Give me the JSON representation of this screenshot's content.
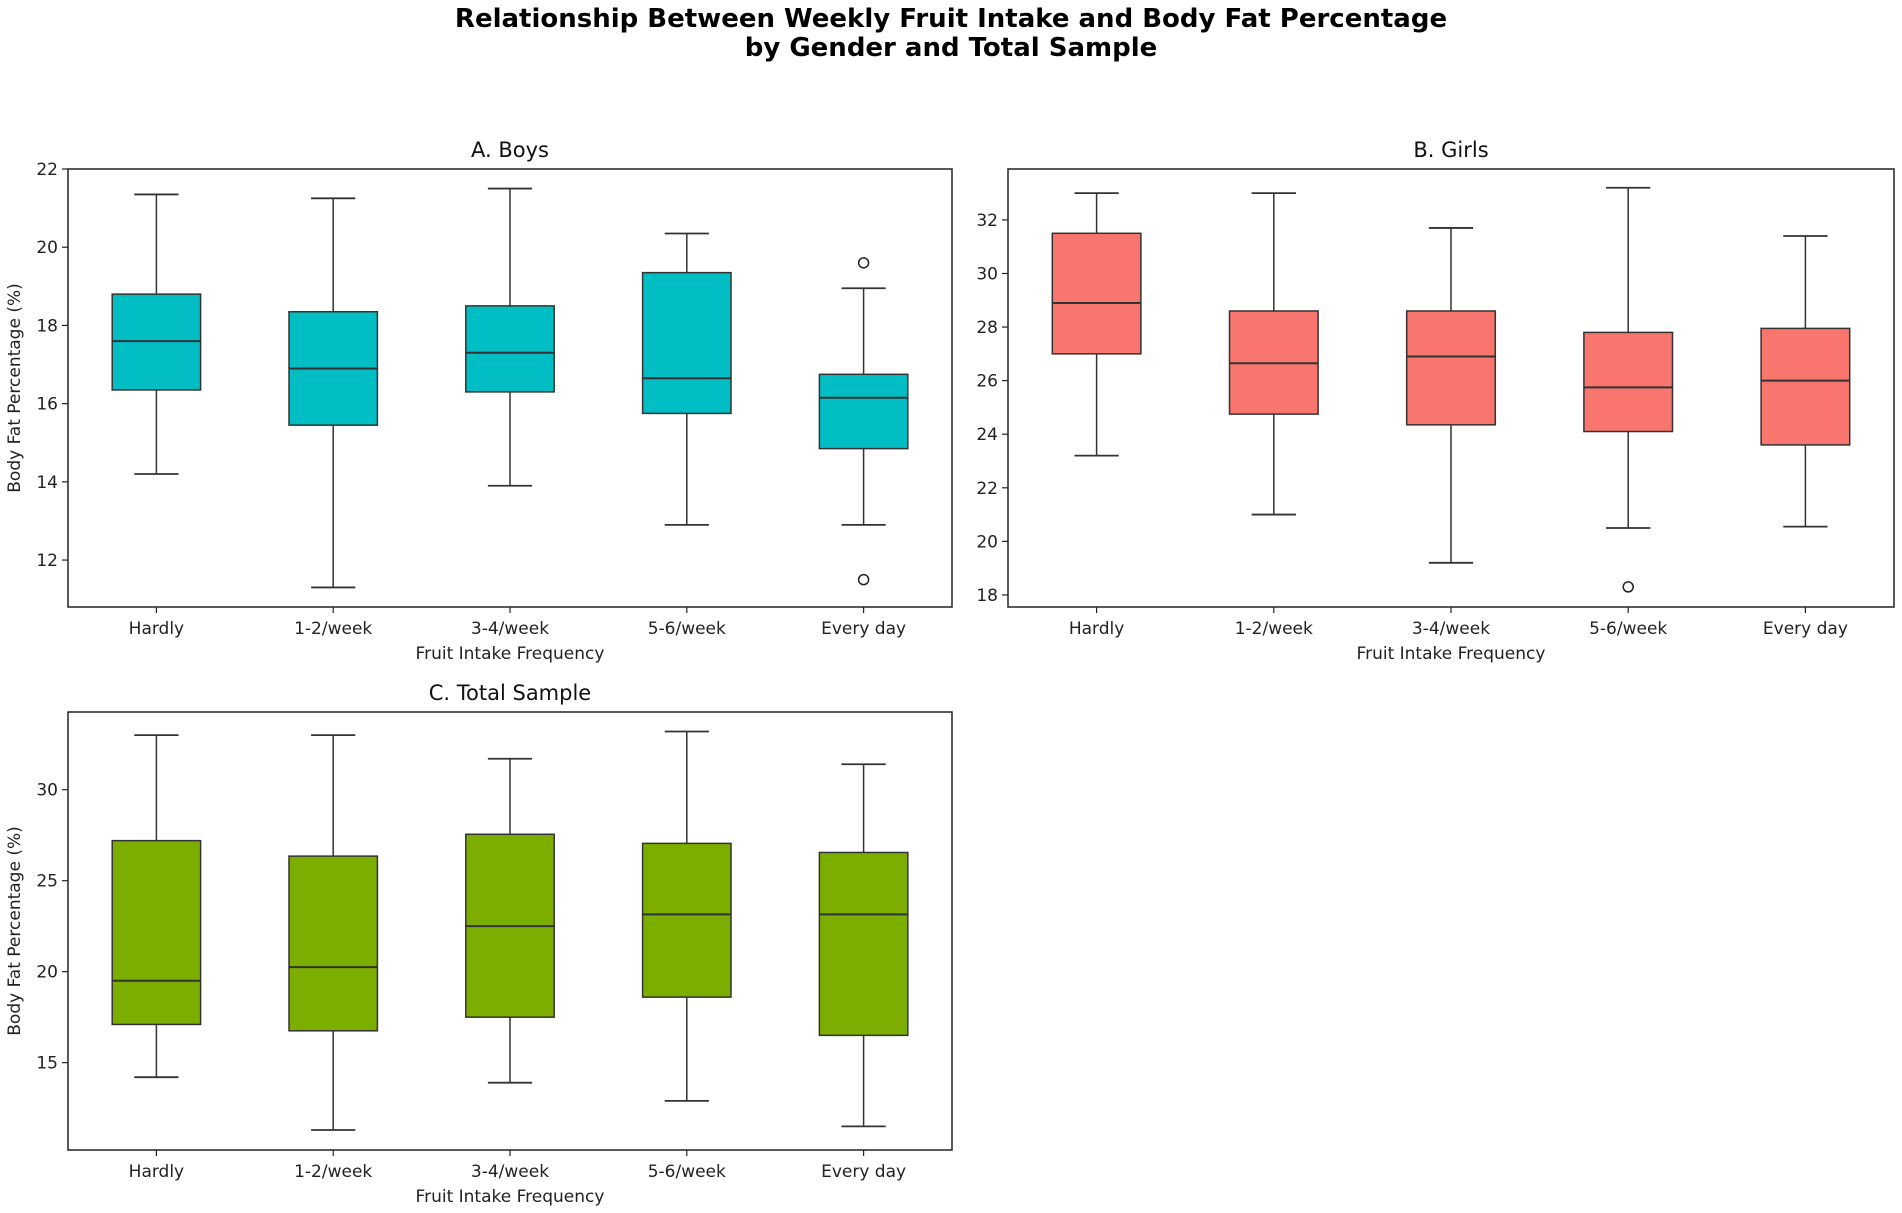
{
  "title_line1": "Relationship Between Weekly Fruit Intake and Body Fat Percentage",
  "title_line2": "by Gender and Total Sample",
  "chart_data": [
    {
      "type": "box",
      "title": "A. Boys",
      "xlabel": "Fruit Intake Frequency",
      "ylabel": "Body Fat Percentage (%)",
      "color": "#00bec4",
      "ylim": [
        10.8,
        22.0
      ],
      "yticks": [
        12,
        14,
        16,
        18,
        20,
        22
      ],
      "categories": [
        "Hardly",
        "1-2/week",
        "3-4/week",
        "5-6/week",
        "Every day"
      ],
      "boxes": [
        {
          "whislo": 14.2,
          "q1": 16.35,
          "med": 17.6,
          "q3": 18.8,
          "whishi": 21.35,
          "fliers": []
        },
        {
          "whislo": 11.3,
          "q1": 15.45,
          "med": 16.9,
          "q3": 18.35,
          "whishi": 21.25,
          "fliers": []
        },
        {
          "whislo": 13.9,
          "q1": 16.3,
          "med": 17.3,
          "q3": 18.5,
          "whishi": 21.5,
          "fliers": []
        },
        {
          "whislo": 12.9,
          "q1": 15.75,
          "med": 16.65,
          "q3": 19.35,
          "whishi": 20.35,
          "fliers": []
        },
        {
          "whislo": 12.9,
          "q1": 14.85,
          "med": 16.15,
          "q3": 16.75,
          "whishi": 18.95,
          "fliers": [
            19.6,
            11.5
          ]
        }
      ]
    },
    {
      "type": "box",
      "title": "B. Girls",
      "xlabel": "Fruit Intake Frequency",
      "ylabel": "",
      "color": "#f8766d",
      "ylim": [
        17.55,
        33.9
      ],
      "yticks": [
        18,
        20,
        22,
        24,
        26,
        28,
        30,
        32
      ],
      "categories": [
        "Hardly",
        "1-2/week",
        "3-4/week",
        "5-6/week",
        "Every day"
      ],
      "boxes": [
        {
          "whislo": 23.2,
          "q1": 27.0,
          "med": 28.9,
          "q3": 31.5,
          "whishi": 33.0,
          "fliers": []
        },
        {
          "whislo": 21.0,
          "q1": 24.75,
          "med": 26.65,
          "q3": 28.6,
          "whishi": 33.0,
          "fliers": []
        },
        {
          "whislo": 19.2,
          "q1": 24.35,
          "med": 26.9,
          "q3": 28.6,
          "whishi": 31.7,
          "fliers": []
        },
        {
          "whislo": 20.5,
          "q1": 24.1,
          "med": 25.75,
          "q3": 27.8,
          "whishi": 33.2,
          "fliers": [
            18.3
          ]
        },
        {
          "whislo": 20.55,
          "q1": 23.6,
          "med": 26.0,
          "q3": 27.95,
          "whishi": 31.4,
          "fliers": []
        }
      ]
    },
    {
      "type": "box",
      "title": "C. Total Sample",
      "xlabel": "Fruit Intake Frequency",
      "ylabel": "Body Fat Percentage (%)",
      "color": "#7cae00",
      "ylim": [
        10.2,
        34.27
      ],
      "yticks": [
        15,
        20,
        25,
        30
      ],
      "categories": [
        "Hardly",
        "1-2/week",
        "3-4/week",
        "5-6/week",
        "Every day"
      ],
      "boxes": [
        {
          "whislo": 14.2,
          "q1": 17.1,
          "med": 19.5,
          "q3": 27.2,
          "whishi": 33.0,
          "fliers": []
        },
        {
          "whislo": 11.3,
          "q1": 16.75,
          "med": 20.25,
          "q3": 26.35,
          "whishi": 33.0,
          "fliers": []
        },
        {
          "whislo": 13.9,
          "q1": 17.5,
          "med": 22.5,
          "q3": 27.55,
          "whishi": 31.7,
          "fliers": []
        },
        {
          "whislo": 12.9,
          "q1": 18.6,
          "med": 23.15,
          "q3": 27.05,
          "whishi": 33.2,
          "fliers": []
        },
        {
          "whislo": 11.5,
          "q1": 16.5,
          "med": 23.15,
          "q3": 26.55,
          "whishi": 31.4,
          "fliers": []
        }
      ]
    }
  ]
}
